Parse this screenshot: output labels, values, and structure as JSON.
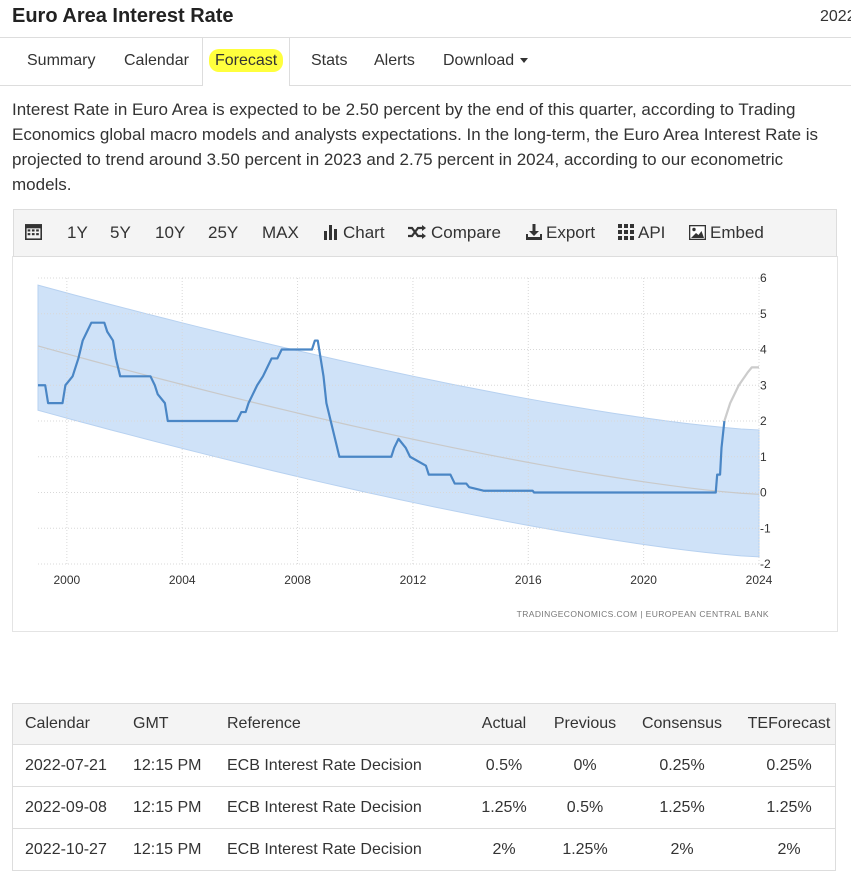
{
  "header": {
    "title": "Euro Area Interest Rate",
    "year_cut": "2022"
  },
  "tabs": [
    {
      "label": "Summary"
    },
    {
      "label": "Calendar"
    },
    {
      "label": "Forecast"
    },
    {
      "label": "Stats"
    },
    {
      "label": "Alerts"
    },
    {
      "label": "Download"
    }
  ],
  "active_tab": "Forecast",
  "description": "Interest Rate in Euro Area is expected to be 2.50 percent by the end of this quarter, according to Trading Economics global macro models and analysts expectations. In the long-term, the Euro Area Interest Rate is projected to trend around 3.50 percent in 2023 and 2.75 percent in 2024, according to our econometric models.",
  "toolbar": {
    "calendar_icon": "calendar-icon",
    "ranges": [
      "1Y",
      "5Y",
      "10Y",
      "25Y",
      "MAX"
    ],
    "chart_label": "Chart",
    "compare_label": "Compare",
    "export_label": "Export",
    "api_label": "API",
    "embed_label": "Embed"
  },
  "chart_data": {
    "type": "line",
    "xlabel": "",
    "ylabel": "",
    "x_ticks": [
      "2000",
      "2004",
      "2008",
      "2012",
      "2016",
      "2020",
      "2024"
    ],
    "y_ticks": [
      "6",
      "5",
      "4",
      "3",
      "2",
      "1",
      "0",
      "-1",
      "-2"
    ],
    "xlim": [
      1999.0,
      2024.0
    ],
    "ylim": [
      -2,
      6
    ],
    "grid": true,
    "source_text": "TRADINGECONOMICS.COM  |  EUROPEAN CENTRAL BANK",
    "colors": {
      "series": "#4a86c5",
      "forecast": "#cccccc",
      "band": "#cfe2f8",
      "band_edge": "#b7d1f0",
      "trend": "#c9c9c9"
    },
    "series": [
      {
        "x": [
          1999.0,
          1999.25,
          1999.35,
          1999.85,
          1999.95,
          2000.2,
          2000.4,
          2000.55,
          2000.7,
          2000.85,
          2001.3,
          2001.4,
          2001.6,
          2001.7,
          2001.85,
          2002.0,
          2002.9,
          2003.05,
          2003.15,
          2003.4,
          2003.5,
          2005.9,
          2006.05,
          2006.2,
          2006.3,
          2006.45,
          2006.6,
          2006.8,
          2006.95,
          2007.1,
          2007.3,
          2007.45,
          2008.5,
          2008.6,
          2008.7,
          2008.8,
          2008.9,
          2009.0,
          2009.15,
          2009.3,
          2009.45,
          2011.25,
          2011.35,
          2011.5,
          2011.75,
          2011.9,
          2012.45,
          2012.55,
          2013.3,
          2013.45,
          2013.85,
          2013.95,
          2014.45,
          2014.7,
          2014.9,
          2016.15,
          2016.2,
          2022.5,
          2022.55,
          2022.65,
          2022.7,
          2022.8
        ],
        "y": [
          3.0,
          3.0,
          2.5,
          2.5,
          3.0,
          3.25,
          3.75,
          4.25,
          4.5,
          4.75,
          4.75,
          4.5,
          4.25,
          3.75,
          3.25,
          3.25,
          3.25,
          3.0,
          2.75,
          2.5,
          2.0,
          2.0,
          2.25,
          2.25,
          2.5,
          2.75,
          3.0,
          3.25,
          3.5,
          3.75,
          3.75,
          4.0,
          4.0,
          4.25,
          4.25,
          3.75,
          3.25,
          2.5,
          2.0,
          1.5,
          1.0,
          1.0,
          1.25,
          1.5,
          1.25,
          1.0,
          0.75,
          0.5,
          0.5,
          0.25,
          0.25,
          0.15,
          0.05,
          0.05,
          0.05,
          0.05,
          0.0,
          0.0,
          0.5,
          0.5,
          1.25,
          2.0
        ]
      },
      {
        "x": [
          2022.8,
          2023.0,
          2023.3,
          2023.6,
          2023.75,
          2024.0
        ],
        "y": [
          2.0,
          2.5,
          3.0,
          3.35,
          3.5,
          3.5
        ]
      }
    ],
    "band": {
      "x": [
        1999.0,
        2024.0
      ],
      "upper_y": [
        5.8,
        1.75
      ],
      "lower_y": [
        2.3,
        -1.8
      ]
    },
    "trend": {
      "x": [
        1999.0,
        2024.0
      ],
      "y": [
        4.1,
        -0.05
      ]
    }
  },
  "table": {
    "headers": [
      "Calendar",
      "GMT",
      "Reference",
      "Actual",
      "Previous",
      "Consensus",
      "TEForecast"
    ],
    "rows": [
      [
        "2022-07-21",
        "12:15 PM",
        "ECB Interest Rate Decision",
        "0.5%",
        "0%",
        "0.25%",
        "0.25%"
      ],
      [
        "2022-09-08",
        "12:15 PM",
        "ECB Interest Rate Decision",
        "1.25%",
        "0.5%",
        "1.25%",
        "1.25%"
      ],
      [
        "2022-10-27",
        "12:15 PM",
        "ECB Interest Rate Decision",
        "2%",
        "1.25%",
        "2%",
        "2%"
      ]
    ]
  }
}
